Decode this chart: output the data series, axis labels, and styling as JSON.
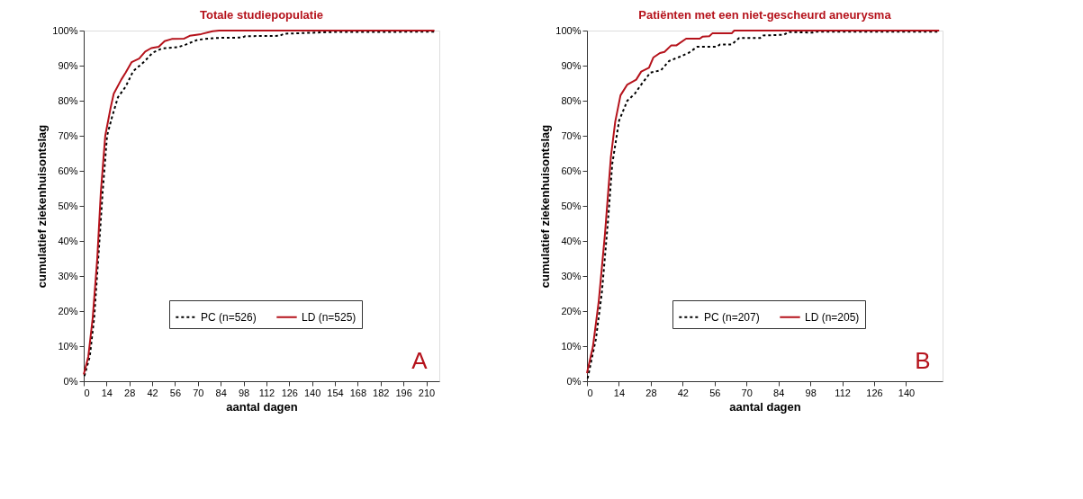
{
  "chart_data": [
    {
      "type": "line",
      "title": "Totale studiepopulatie",
      "xlabel": "aantal dagen",
      "ylabel": "cumulatief ziekenhuisontslag",
      "xlim": [
        0,
        218
      ],
      "xticks": [
        0,
        14,
        28,
        42,
        56,
        70,
        84,
        98,
        112,
        126,
        140,
        154,
        168,
        182,
        196,
        210
      ],
      "ylim": [
        0,
        100
      ],
      "yticks": [
        {
          "value": 0,
          "label": "0%"
        },
        {
          "value": 10,
          "label": "10%"
        },
        {
          "value": 20,
          "label": "20%"
        },
        {
          "value": 30,
          "label": "30%"
        },
        {
          "value": 40,
          "label": "40%"
        },
        {
          "value": 50,
          "label": "50%"
        },
        {
          "value": 60,
          "label": "60%"
        },
        {
          "value": 70,
          "label": "70%"
        },
        {
          "value": 80,
          "label": "80%"
        },
        {
          "value": 90,
          "label": "90%"
        },
        {
          "value": 100,
          "label": "100%"
        }
      ],
      "grid": false,
      "legend": "bottom right",
      "annotations": [
        "A"
      ],
      "series": [
        {
          "name": "PC (n=526)",
          "color": "#000000",
          "line_style": "dotted",
          "x": [
            0.4,
            3.7,
            6.4,
            9.2,
            11.6,
            14.3,
            17.5,
            21,
            25.7,
            30.3,
            36.8,
            42.3,
            48,
            58,
            62.5,
            70,
            81,
            97,
            99,
            120,
            123,
            153,
            193,
            196,
            215
          ],
          "values": [
            1.5,
            7,
            18,
            37,
            54,
            70,
            75.6,
            81,
            84,
            88.4,
            91,
            93.7,
            94.9,
            95.3,
            96,
            97.4,
            97.9,
            98,
            98.4,
            98.5,
            99.1,
            99.6,
            99.6,
            99.7,
            99.7
          ]
        },
        {
          "name": "LD (n=525)",
          "color": "#b5121b",
          "line_style": "solid",
          "x": [
            0,
            2.8,
            5.5,
            8.3,
            10.5,
            13.2,
            16.5,
            18.4,
            23,
            25.7,
            29.4,
            34,
            37.7,
            41.4,
            46,
            49.6,
            54,
            61.6,
            65,
            72,
            79,
            83,
            215
          ],
          "values": [
            1.9,
            7,
            18,
            35,
            54,
            70,
            78,
            82,
            86,
            88,
            91,
            92,
            94,
            95,
            95.4,
            97,
            97.6,
            97.7,
            98.5,
            99,
            99.8,
            100,
            100
          ]
        }
      ]
    },
    {
      "type": "line",
      "title": "Patiënten met een niet-gescheurd aneurysma",
      "xlabel": "aantal dagen",
      "ylabel": "cumulatief ziekenhuisontslag",
      "xlim": [
        0,
        156
      ],
      "xticks": [
        0,
        14,
        28,
        42,
        56,
        70,
        84,
        98,
        112,
        126,
        140
      ],
      "ylim": [
        0,
        100
      ],
      "yticks": [
        {
          "value": 0,
          "label": "0%"
        },
        {
          "value": 10,
          "label": "10%"
        },
        {
          "value": 20,
          "label": "20%"
        },
        {
          "value": 30,
          "label": "30%"
        },
        {
          "value": 40,
          "label": "40%"
        },
        {
          "value": 50,
          "label": "50%"
        },
        {
          "value": 60,
          "label": "60%"
        },
        {
          "value": 70,
          "label": "70%"
        },
        {
          "value": 80,
          "label": "80%"
        },
        {
          "value": 90,
          "label": "90%"
        },
        {
          "value": 100,
          "label": "100%"
        }
      ],
      "grid": false,
      "legend": "bottom right",
      "annotations": [
        "B"
      ],
      "series": [
        {
          "name": "PC (n=207)",
          "color": "#000000",
          "line_style": "dotted",
          "x": [
            0.3,
            3.9,
            6.5,
            9.2,
            11.1,
            14.1,
            17.7,
            21,
            23.8,
            27.8,
            32.5,
            36,
            40.6,
            44.5,
            48.5,
            57,
            58.3,
            63.5,
            66.8,
            76,
            77.3,
            86.4,
            88.4,
            98.9,
            100.2,
            154.5
          ],
          "values": [
            0.8,
            12,
            25,
            45.5,
            62,
            74.3,
            80,
            82,
            84.6,
            88,
            88.7,
            91.3,
            92.5,
            93.6,
            95.4,
            95.4,
            96,
            96,
            97.9,
            97.9,
            98.6,
            98.8,
            99.6,
            99.4,
            99.7,
            99.7
          ]
        },
        {
          "name": "LD (n=205)",
          "color": "#b5121b",
          "line_style": "solid",
          "x": [
            0,
            2.6,
            5.2,
            7.9,
            10.5,
            12.4,
            14.7,
            17.7,
            21.6,
            23.8,
            27.2,
            29.1,
            32,
            34,
            37,
            39.3,
            43.5,
            49.5,
            50.8,
            53.7,
            55,
            63.5,
            64.6,
            154.5
          ],
          "values": [
            2.3,
            9.8,
            23,
            42,
            64,
            74,
            81.5,
            84.6,
            86,
            88.3,
            89.4,
            92.3,
            93.6,
            93.9,
            95.8,
            95.8,
            97.7,
            97.7,
            98.3,
            98.4,
            99.2,
            99.2,
            100,
            100
          ]
        }
      ]
    }
  ]
}
